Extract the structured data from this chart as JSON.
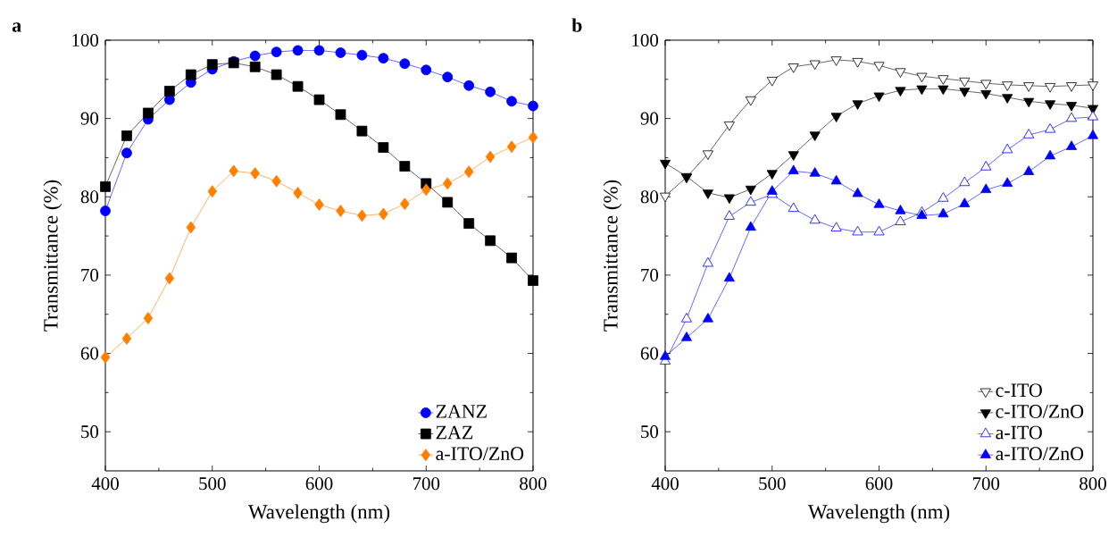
{
  "chart_data": [
    {
      "type": "line",
      "annotations": [
        "a"
      ],
      "xlabel": "Wavelength (nm)",
      "ylabel": "Transmittance (%)",
      "xlim": [
        400,
        800
      ],
      "ylim": [
        45,
        100
      ],
      "xticks": [
        400,
        500,
        600,
        700,
        800
      ],
      "yticks": [
        50,
        60,
        70,
        80,
        90,
        100
      ],
      "legend": "bottom right",
      "line_style": "solid",
      "x": [
        400,
        420,
        440,
        460,
        480,
        500,
        520,
        540,
        560,
        580,
        600,
        620,
        640,
        660,
        680,
        700,
        720,
        740,
        760,
        780,
        800
      ],
      "series": [
        {
          "name": "ZANZ",
          "color": "#0000ff",
          "marker": "circle",
          "values": [
            78.2,
            85.6,
            89.9,
            92.4,
            94.6,
            96.3,
            97.3,
            98.0,
            98.5,
            98.7,
            98.7,
            98.4,
            98.1,
            97.7,
            97.0,
            96.2,
            95.3,
            94.2,
            93.4,
            92.2,
            91.6
          ]
        },
        {
          "name": "ZAZ",
          "color": "#000000",
          "marker": "square",
          "values": [
            81.3,
            87.8,
            90.7,
            93.5,
            95.6,
            96.9,
            97.1,
            96.6,
            95.6,
            94.1,
            92.4,
            90.5,
            88.4,
            86.3,
            83.9,
            81.7,
            79.3,
            76.6,
            74.4,
            72.2,
            69.3
          ]
        },
        {
          "name": "a-ITO/ZnO",
          "color": "#ff8000",
          "marker": "diamond",
          "values": [
            59.5,
            61.9,
            64.5,
            69.6,
            76.1,
            80.7,
            83.3,
            83.0,
            82.0,
            80.5,
            79.0,
            78.2,
            77.6,
            77.8,
            79.1,
            80.9,
            81.7,
            83.2,
            85.1,
            86.4,
            87.6
          ]
        }
      ]
    },
    {
      "type": "line",
      "annotations": [
        "b"
      ],
      "xlabel": "Wavelength (nm)",
      "ylabel": "Transmittance (%)",
      "xlim": [
        400,
        800
      ],
      "ylim": [
        45,
        100
      ],
      "xticks": [
        400,
        500,
        600,
        700,
        800
      ],
      "yticks": [
        50,
        60,
        70,
        80,
        90,
        100
      ],
      "legend": "bottom right",
      "line_style": "solid",
      "x": [
        400,
        420,
        440,
        460,
        480,
        500,
        520,
        540,
        560,
        580,
        600,
        620,
        640,
        660,
        680,
        700,
        720,
        740,
        760,
        780,
        800
      ],
      "series": [
        {
          "name": "c-ITO",
          "color": "#000000",
          "marker": "triangle-down-open",
          "values": [
            80.1,
            82.5,
            85.5,
            89.2,
            92.4,
            94.9,
            96.6,
            97.0,
            97.5,
            97.3,
            96.8,
            96.0,
            95.4,
            95.1,
            94.8,
            94.5,
            94.3,
            94.2,
            94.1,
            94.2,
            94.3
          ]
        },
        {
          "name": "c-ITO/ZnO",
          "color": "#000000",
          "marker": "triangle-down",
          "values": [
            84.3,
            82.6,
            80.5,
            79.9,
            81.0,
            83.0,
            85.4,
            87.9,
            90.3,
            91.9,
            92.9,
            93.6,
            93.8,
            93.8,
            93.5,
            93.2,
            92.7,
            92.2,
            91.9,
            91.7,
            91.3
          ]
        },
        {
          "name": "a-ITO",
          "color": "#0000ff",
          "marker": "triangle-open",
          "values": [
            59.0,
            64.4,
            71.5,
            77.5,
            79.3,
            80.3,
            78.5,
            77.0,
            76.0,
            75.5,
            75.5,
            76.8,
            78.0,
            79.8,
            81.8,
            83.8,
            86.0,
            87.9,
            88.6,
            90.0,
            90.2
          ]
        },
        {
          "name": "a-ITO/ZnO",
          "color": "#0000ff",
          "marker": "triangle",
          "values": [
            59.6,
            62.0,
            64.4,
            69.6,
            76.1,
            80.7,
            83.3,
            83.0,
            82.0,
            80.4,
            79.0,
            78.2,
            77.6,
            77.8,
            79.1,
            80.9,
            81.7,
            83.2,
            85.2,
            86.4,
            87.8
          ]
        }
      ]
    }
  ]
}
